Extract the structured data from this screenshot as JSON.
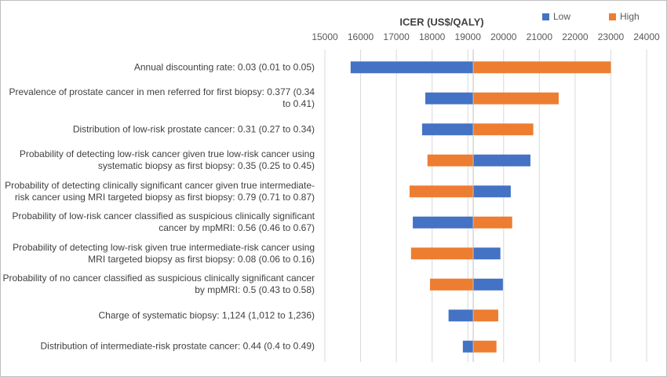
{
  "chart_data": {
    "type": "tornado",
    "title": "ICER (US$/QALY)",
    "categories": [
      "Annual discounting rate: 0.03 (0.01 to 0.05)",
      "Prevalence of prostate cancer in men referred for first biopsy: 0.377 (0.34 to 0.41)",
      "Distribution of low-risk prostate cancer: 0.31 (0.27 to 0.34)",
      "Probability of detecting low-risk cancer given true low-risk cancer using systematic biopsy as first biopsy: 0.35 (0.25 to 0.45)",
      "Probability of detecting clinically significant cancer given true intermediate-risk cancer using MRI targeted biopsy as first biopsy: 0.79 (0.71 to 0.87)",
      "Probability of low-risk cancer classified as suspicious clinically significant cancer by mpMRI: 0.56 (0.46 to 0.67)",
      "Probability of detecting low-risk given true intermediate-risk cancer using MRI targeted biopsy as first biopsy: 0.08 (0.06 to 0.16)",
      "Probability of no cancer classified as suspicious clinically significant cancer by mpMRI: 0.5 (0.43 to 0.58)",
      "Charge of systematic biopsy: 1,124 (1,012 to 1,236)",
      "Distribution of intermediate-risk prostate cancer: 0.44 (0.4 to 0.49)"
    ],
    "base": 19150,
    "series": [
      {
        "name": "Low",
        "color": "#4472c4",
        "values": [
          15720,
          17810,
          17720,
          20750,
          20200,
          17460,
          19910,
          19980,
          18460,
          18860
        ]
      },
      {
        "name": "High",
        "color": "#ed7d31",
        "values": [
          23000,
          21540,
          20830,
          17870,
          17370,
          20240,
          17410,
          17940,
          19850,
          19800
        ]
      }
    ],
    "xlim": [
      15000,
      24000
    ],
    "xticks": [
      15000,
      16000,
      17000,
      18000,
      19000,
      20000,
      21000,
      22000,
      23000,
      24000
    ],
    "grid": true,
    "legend": "top-right"
  }
}
